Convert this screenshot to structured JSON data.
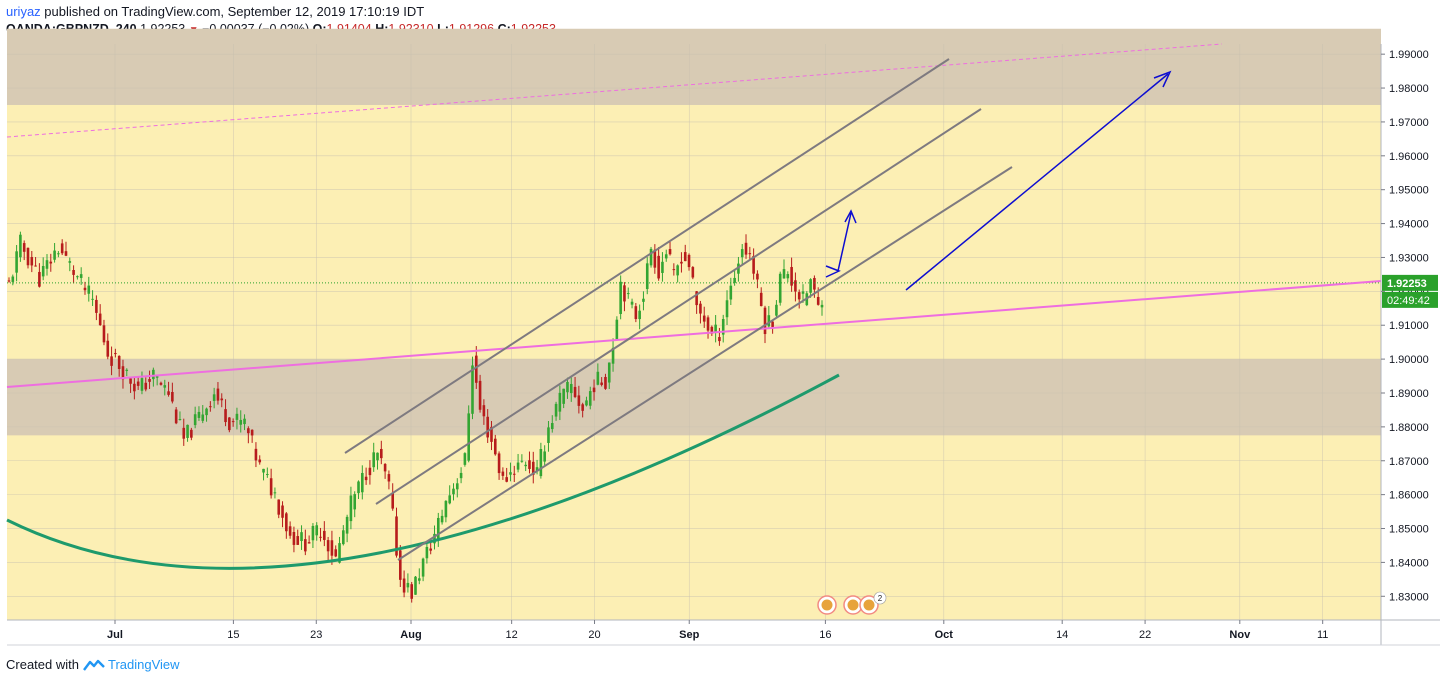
{
  "header": {
    "user": "uriyaz",
    "published": " published on TradingView.com, September 12, 2019 17:10:19 IDT",
    "symbol": "OANDA:GBPNZD, 240",
    "last": "1.92253",
    "change": "−0.00037 (−0.02%)",
    "o_label": "O:",
    "o": "1.91404",
    "h_label": "H:",
    "h": "1.92310",
    "l_label": "L:",
    "l": "1.91296",
    "c_label": "C:",
    "c": "1.92253"
  },
  "footer": {
    "created": "Created with",
    "brand": "TradingView"
  },
  "colors": {
    "background": "#fcefb4",
    "zone": "#d8cbb4",
    "up": "#33a532",
    "down": "#b71c1c",
    "pink": "#ee6ee0",
    "green_curve": "#1e9a6c",
    "channel": "#7e7a80",
    "blue_arrow": "#0d0dd0",
    "price_label": "#2aa12b"
  },
  "chart_data": {
    "type": "candlestick",
    "ylim": [
      1.823,
      1.993
    ],
    "y_ticks": [
      "1.99000",
      "1.98000",
      "1.97000",
      "1.96000",
      "1.95000",
      "1.94000",
      "1.93000",
      "1.92000",
      "1.91000",
      "1.90000",
      "1.89000",
      "1.88000",
      "1.87000",
      "1.86000",
      "1.85000",
      "1.84000",
      "1.83000"
    ],
    "x_ticks": [
      {
        "label": "Jul",
        "t": 0.0,
        "bold": true
      },
      {
        "label": "15",
        "t": 0.2
      },
      {
        "label": "23",
        "t": 0.34
      },
      {
        "label": "Aug",
        "t": 0.5,
        "bold": true
      },
      {
        "label": "12",
        "t": 0.67
      },
      {
        "label": "20",
        "t": 0.81
      },
      {
        "label": "Sep",
        "t": 0.97,
        "bold": true
      },
      {
        "label": "16",
        "t": 1.2
      },
      {
        "label": "Oct",
        "t": 1.4,
        "bold": true
      },
      {
        "label": "14",
        "t": 1.6
      },
      {
        "label": "22",
        "t": 1.74
      },
      {
        "label": "Nov",
        "t": 1.9,
        "bold": true
      },
      {
        "label": "11",
        "t": 2.04
      }
    ],
    "current_price": "1.92253",
    "countdown": "02:49:42",
    "price_path": [
      [
        0,
        1.922
      ],
      [
        3,
        1.934
      ],
      [
        8,
        1.924
      ],
      [
        13,
        1.933
      ],
      [
        18,
        1.924
      ],
      [
        22,
        1.917
      ],
      [
        26,
        1.902
      ],
      [
        30,
        1.897
      ],
      [
        34,
        1.891
      ],
      [
        38,
        1.895
      ],
      [
        42,
        1.89
      ],
      [
        46,
        1.876
      ],
      [
        50,
        1.883
      ],
      [
        54,
        1.89
      ],
      [
        58,
        1.882
      ],
      [
        62,
        1.881
      ],
      [
        66,
        1.868
      ],
      [
        70,
        1.86
      ],
      [
        74,
        1.848
      ],
      [
        78,
        1.846
      ],
      [
        82,
        1.85
      ],
      [
        86,
        1.841
      ],
      [
        90,
        1.857
      ],
      [
        94,
        1.867
      ],
      [
        97,
        1.872
      ],
      [
        100,
        1.862
      ],
      [
        103,
        1.835
      ],
      [
        106,
        1.831
      ],
      [
        109,
        1.84
      ],
      [
        112,
        1.848
      ],
      [
        115,
        1.858
      ],
      [
        118,
        1.865
      ],
      [
        120,
        1.87
      ],
      [
        122,
        1.9
      ],
      [
        124,
        1.885
      ],
      [
        127,
        1.876
      ],
      [
        130,
        1.864
      ],
      [
        133,
        1.868
      ],
      [
        136,
        1.87
      ],
      [
        139,
        1.866
      ],
      [
        142,
        1.88
      ],
      [
        145,
        1.888
      ],
      [
        148,
        1.892
      ],
      [
        151,
        1.885
      ],
      [
        154,
        1.893
      ],
      [
        157,
        1.894
      ],
      [
        159,
        1.905
      ],
      [
        161,
        1.923
      ],
      [
        163,
        1.917
      ],
      [
        165,
        1.913
      ],
      [
        167,
        1.92
      ],
      [
        169,
        1.933
      ],
      [
        171,
        1.926
      ],
      [
        173,
        1.932
      ],
      [
        175,
        1.924
      ],
      [
        177,
        1.931
      ],
      [
        179,
        1.928
      ],
      [
        181,
        1.915
      ],
      [
        183,
        1.912
      ],
      [
        185,
        1.907
      ],
      [
        187,
        1.908
      ],
      [
        189,
        1.918
      ],
      [
        191,
        1.925
      ],
      [
        193,
        1.933
      ],
      [
        195,
        1.931
      ],
      [
        197,
        1.921
      ],
      [
        199,
        1.91
      ],
      [
        201,
        1.912
      ],
      [
        203,
        1.924
      ],
      [
        205,
        1.926
      ],
      [
        207,
        1.921
      ],
      [
        209,
        1.917
      ],
      [
        211,
        1.923
      ],
      [
        213,
        1.915
      ],
      [
        214,
        1.919
      ]
    ],
    "n_candles": 215
  }
}
